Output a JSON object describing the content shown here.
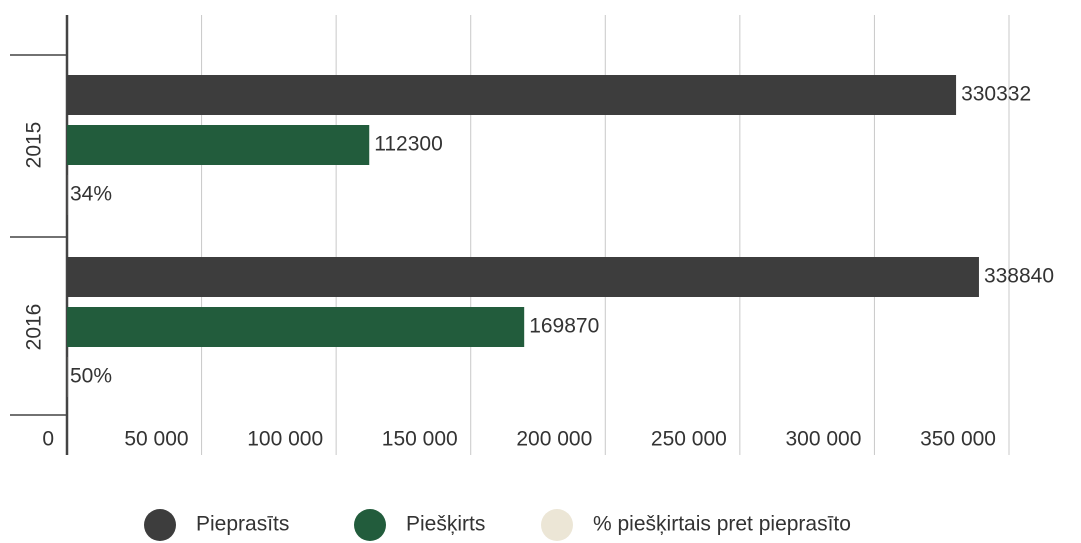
{
  "chart_data": {
    "type": "bar",
    "orientation": "horizontal",
    "categories": [
      "2015",
      "2016"
    ],
    "series": [
      {
        "name": "Pieprasīts",
        "color": "#3d3d3d",
        "values": [
          330332,
          338840
        ]
      },
      {
        "name": "Piešķirts",
        "color": "#225c3c",
        "values": [
          112300,
          169870
        ]
      },
      {
        "name": "% piešķirtais pret pieprasīto",
        "color": "#ece6d6",
        "values": [
          34,
          50
        ],
        "value_labels": [
          "34%",
          "50%"
        ]
      }
    ],
    "xlim": [
      0,
      350000
    ],
    "xticks": [
      0,
      {
        "value": 50000,
        "label": "50 000"
      },
      {
        "value": 100000,
        "label": "100 000"
      },
      {
        "value": 150000,
        "label": "150 000"
      },
      {
        "value": 200000,
        "label": "200 000"
      },
      {
        "value": 250000,
        "label": "250 000"
      },
      {
        "value": 300000,
        "label": "300 000"
      },
      {
        "value": 350000,
        "label": "350 000"
      }
    ],
    "grid": true,
    "legend": "bottom"
  }
}
